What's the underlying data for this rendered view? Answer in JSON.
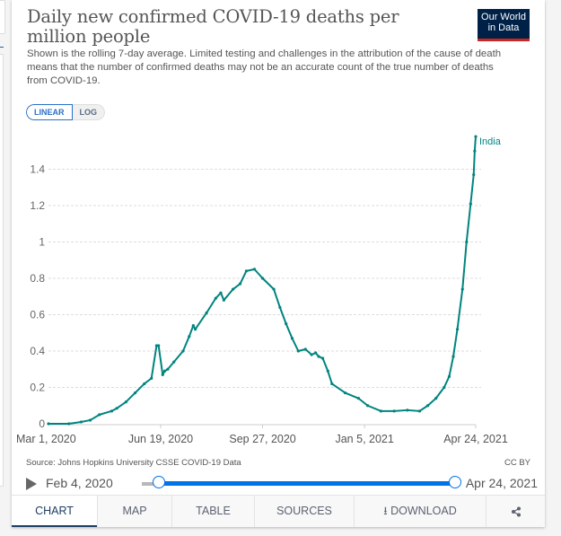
{
  "header": {
    "title": "Daily new confirmed COVID-19 deaths per million people",
    "subtitle": "Shown is the rolling 7-day average. Limited testing and challenges in the attribution of the cause of death means that the number of confirmed deaths may not be an accurate count of the true number of deaths from COVID-19.",
    "logo_line1": "Our World",
    "logo_line2": "in Data"
  },
  "scale_toggle": {
    "options": [
      "LINEAR",
      "LOG"
    ],
    "selected": "LINEAR"
  },
  "footer": {
    "source": "Source: Johns Hopkins University CSSE COVID-19 Data",
    "license": "CC BY"
  },
  "timeline": {
    "start_label": "Feb 4, 2020",
    "end_label": "Apr 24, 2021",
    "range_start_fraction": 0.0,
    "range_end_fraction": 1.0
  },
  "tabs": [
    {
      "label": "CHART",
      "active": true
    },
    {
      "label": "MAP",
      "active": false
    },
    {
      "label": "TABLE",
      "active": false
    },
    {
      "label": "SOURCES",
      "active": false
    },
    {
      "label": "DOWNLOAD",
      "icon": "download-icon",
      "active": false
    },
    {
      "label": "",
      "icon": "share-icon",
      "active": false
    }
  ],
  "colors": {
    "series": "#00847e",
    "logo_bg": "#002147",
    "logo_bar": "#ce261e",
    "accent": "#0073e6"
  },
  "chart_data": {
    "type": "line",
    "title": "Daily new confirmed COVID-19 deaths per million people",
    "xlabel": "",
    "ylabel": "",
    "x_start": "Mar 1, 2020",
    "x_end": "Apr 24, 2021",
    "xlim_days": [
      0,
      419
    ],
    "ylim": [
      0,
      1.6
    ],
    "yticks": [
      0,
      0.2,
      0.4,
      0.6,
      0.8,
      1,
      1.2,
      1.4
    ],
    "ytick_labels": [
      "0",
      "0.2",
      "0.4",
      "0.6",
      "0.8",
      "1",
      "1.2",
      "1.4"
    ],
    "xticks_days": [
      0,
      110,
      210,
      310,
      419
    ],
    "xtick_labels": [
      "Mar 1, 2020",
      "Jun 19, 2020",
      "Sep 27, 2020",
      "Jan 5, 2021",
      "Apr 24, 2021"
    ],
    "grid": "horizontal-dashed",
    "legend": "inline-end-label",
    "series": [
      {
        "name": "India",
        "x_days": [
          0,
          20,
          32,
          41,
          50,
          62,
          67,
          76,
          85,
          94,
          101,
          106,
          108,
          112,
          114,
          117,
          123,
          132,
          138,
          142,
          144,
          155,
          164,
          169,
          172,
          181,
          188,
          194,
          202,
          210,
          221,
          227,
          233,
          239,
          245,
          252,
          258,
          262,
          265,
          269,
          274,
          278,
          291,
          304,
          313,
          326,
          339,
          352,
          364,
          372,
          380,
          388,
          393,
          397,
          401,
          406,
          410,
          414,
          417,
          418,
          419
        ],
        "values": [
          0.0,
          0.0,
          0.01,
          0.02,
          0.05,
          0.07,
          0.085,
          0.12,
          0.17,
          0.22,
          0.25,
          0.43,
          0.43,
          0.27,
          0.29,
          0.3,
          0.34,
          0.4,
          0.48,
          0.54,
          0.52,
          0.61,
          0.69,
          0.72,
          0.68,
          0.74,
          0.77,
          0.84,
          0.85,
          0.8,
          0.74,
          0.64,
          0.55,
          0.47,
          0.4,
          0.41,
          0.38,
          0.39,
          0.37,
          0.36,
          0.29,
          0.22,
          0.17,
          0.14,
          0.1,
          0.07,
          0.07,
          0.075,
          0.07,
          0.1,
          0.14,
          0.2,
          0.26,
          0.37,
          0.52,
          0.74,
          1.0,
          1.21,
          1.37,
          1.5,
          1.58
        ]
      }
    ]
  }
}
